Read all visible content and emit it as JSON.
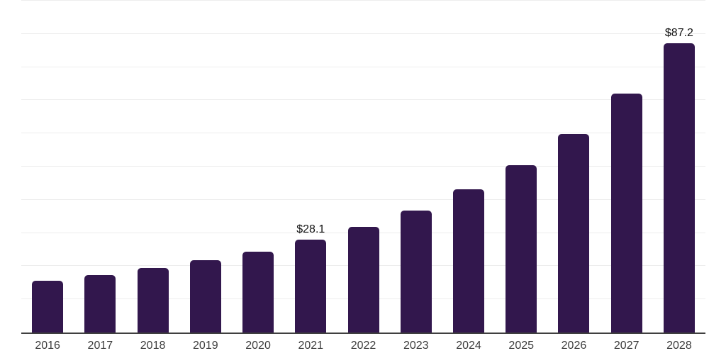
{
  "chart_data": {
    "type": "bar",
    "title": "",
    "xlabel": "",
    "ylabel": "",
    "categories": [
      "2016",
      "2017",
      "2018",
      "2019",
      "2020",
      "2021",
      "2022",
      "2023",
      "2024",
      "2025",
      "2026",
      "2027",
      "2028"
    ],
    "values": [
      15.6,
      17.3,
      19.4,
      21.8,
      24.4,
      28.1,
      31.8,
      36.8,
      43.2,
      50.4,
      59.8,
      72.0,
      87.2
    ],
    "bar_labels": [
      "",
      "",
      "",
      "",
      "",
      "$28.1",
      "",
      "",
      "",
      "",
      "",
      "",
      "$87.2"
    ],
    "ylim": [
      0,
      100
    ],
    "gridline_step": 10,
    "grid": "horizontal",
    "legend": "none",
    "y_axis_tick_labels": "none",
    "colors": {
      "bar": "#32174d",
      "axis_line": "#3f3f3f",
      "gridline": "#ededed",
      "tick_label": "#3d3d3d",
      "data_label": "#111111",
      "background": "#ffffff"
    }
  }
}
